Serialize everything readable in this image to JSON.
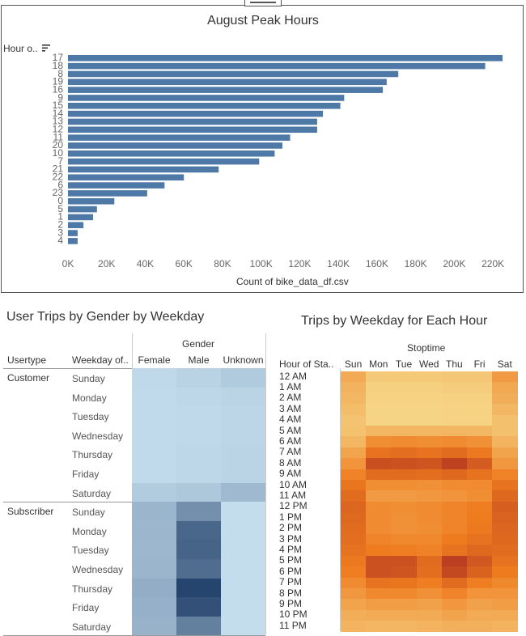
{
  "colors": {
    "bar": "#4e79a7",
    "axis_text": "#666666",
    "frame": "#555555"
  },
  "peak_hours": {
    "title": "August Peak Hours",
    "row_header": "Hour o..",
    "x_label": "Count of bike_data_df.csv",
    "sort_icon": "sort-descending-icon",
    "chart_data": {
      "type": "bar",
      "orientation": "horizontal",
      "title": "August Peak Hours",
      "xlabel": "Count of bike_data_df.csv",
      "ylabel": "Hour o..",
      "categories": [
        "17",
        "18",
        "8",
        "19",
        "16",
        "9",
        "15",
        "14",
        "13",
        "12",
        "11",
        "20",
        "10",
        "7",
        "21",
        "22",
        "6",
        "23",
        "0",
        "5",
        "1",
        "2",
        "3",
        "4"
      ],
      "values": [
        225000,
        216000,
        171000,
        165000,
        163000,
        143000,
        141000,
        132000,
        129000,
        129000,
        115000,
        111000,
        107000,
        99000,
        78000,
        60000,
        50000,
        41000,
        24000,
        15000,
        13000,
        8000,
        5000,
        5000
      ],
      "xlim": [
        0,
        230000
      ],
      "xticks": [
        0,
        20000,
        40000,
        60000,
        80000,
        100000,
        120000,
        140000,
        160000,
        180000,
        200000,
        220000
      ],
      "xtick_labels": [
        "0K",
        "20K",
        "40K",
        "60K",
        "80K",
        "100K",
        "120K",
        "140K",
        "160K",
        "180K",
        "200K",
        "220K"
      ],
      "grid": false,
      "legend": "none"
    }
  },
  "gender_table": {
    "title": "User Trips by Gender by Weekday",
    "gender_header": "Gender",
    "usertype_header": "Usertype",
    "weekday_header": "Weekday of..",
    "columns": [
      "Female",
      "Male",
      "Unknown"
    ],
    "groups": [
      {
        "usertype": "Customer",
        "days": [
          "Sunday",
          "Monday",
          "Tuesday",
          "Wednesday",
          "Thursday",
          "Friday",
          "Saturday"
        ]
      },
      {
        "usertype": "Subscriber",
        "days": [
          "Sunday",
          "Monday",
          "Tuesday",
          "Wednesday",
          "Thursday",
          "Friday",
          "Saturday"
        ]
      }
    ],
    "chart_data": {
      "type": "heatmap",
      "title": "User Trips by Gender by Weekday",
      "xlabel": "Gender",
      "ylabel": "Usertype / Weekday of..",
      "x": [
        "Female",
        "Male",
        "Unknown"
      ],
      "y": [
        "Customer Sunday",
        "Customer Monday",
        "Customer Tuesday",
        "Customer Wednesday",
        "Customer Thursday",
        "Customer Friday",
        "Customer Saturday",
        "Subscriber Sunday",
        "Subscriber Monday",
        "Subscriber Tuesday",
        "Subscriber Wednesday",
        "Subscriber Thursday",
        "Subscriber Friday",
        "Subscriber Saturday"
      ],
      "values": [
        [
          0.05,
          0.09,
          0.14
        ],
        [
          0.04,
          0.06,
          0.08
        ],
        [
          0.04,
          0.05,
          0.07
        ],
        [
          0.04,
          0.05,
          0.07
        ],
        [
          0.04,
          0.06,
          0.08
        ],
        [
          0.04,
          0.06,
          0.08
        ],
        [
          0.13,
          0.16,
          0.25
        ],
        [
          0.28,
          0.52,
          0.02
        ],
        [
          0.27,
          0.78,
          0.02
        ],
        [
          0.26,
          0.8,
          0.02
        ],
        [
          0.28,
          0.74,
          0.02
        ],
        [
          0.33,
          1.0,
          0.02
        ],
        [
          0.31,
          0.92,
          0.02
        ],
        [
          0.3,
          0.62,
          0.02
        ]
      ],
      "color_scale": {
        "low": "#c7e0f0",
        "high": "#26456e"
      },
      "legend": "none"
    }
  },
  "weekday_heatmap": {
    "title": "Trips by Weekday for Each Hour",
    "stoptime_header": "Stoptime",
    "hour_header": "Hour of Sta..",
    "days": [
      "Sun",
      "Mon",
      "Tue",
      "Wed",
      "Thu",
      "Fri",
      "Sat"
    ],
    "hours": [
      "12 AM",
      "1 AM",
      "2 AM",
      "3 AM",
      "4 AM",
      "5 AM",
      "6 AM",
      "7 AM",
      "8 AM",
      "9 AM",
      "10 AM",
      "11 AM",
      "12 PM",
      "1 PM",
      "2 PM",
      "3 PM",
      "4 PM",
      "5 PM",
      "6 PM",
      "7 PM",
      "8 PM",
      "9 PM",
      "10 PM",
      "11 PM"
    ],
    "chart_data": {
      "type": "heatmap",
      "title": "Trips by Weekday for Each Hour",
      "xlabel": "Stoptime",
      "ylabel": "Hour of Sta..",
      "x": [
        "Sun",
        "Mon",
        "Tue",
        "Wed",
        "Thu",
        "Fri",
        "Sat"
      ],
      "y": [
        "12 AM",
        "1 AM",
        "2 AM",
        "3 AM",
        "4 AM",
        "5 AM",
        "6 AM",
        "7 AM",
        "8 AM",
        "9 AM",
        "10 AM",
        "11 AM",
        "12 PM",
        "1 PM",
        "2 PM",
        "3 PM",
        "4 PM",
        "5 PM",
        "6 PM",
        "7 PM",
        "8 PM",
        "9 PM",
        "10 PM",
        "11 PM"
      ],
      "values": [
        [
          0.3,
          0.1,
          0.1,
          0.1,
          0.12,
          0.12,
          0.4
        ],
        [
          0.25,
          0.06,
          0.06,
          0.06,
          0.08,
          0.08,
          0.32
        ],
        [
          0.22,
          0.04,
          0.04,
          0.04,
          0.05,
          0.05,
          0.28
        ],
        [
          0.18,
          0.03,
          0.03,
          0.03,
          0.04,
          0.04,
          0.22
        ],
        [
          0.14,
          0.03,
          0.03,
          0.03,
          0.04,
          0.04,
          0.16
        ],
        [
          0.15,
          0.22,
          0.22,
          0.22,
          0.22,
          0.22,
          0.16
        ],
        [
          0.22,
          0.48,
          0.5,
          0.48,
          0.5,
          0.46,
          0.24
        ],
        [
          0.34,
          0.66,
          0.68,
          0.66,
          0.7,
          0.62,
          0.34
        ],
        [
          0.44,
          0.88,
          0.86,
          0.84,
          0.96,
          0.8,
          0.42
        ],
        [
          0.55,
          0.7,
          0.7,
          0.68,
          0.72,
          0.66,
          0.55
        ],
        [
          0.64,
          0.48,
          0.48,
          0.46,
          0.5,
          0.5,
          0.66
        ],
        [
          0.7,
          0.4,
          0.4,
          0.42,
          0.44,
          0.48,
          0.72
        ],
        [
          0.74,
          0.5,
          0.48,
          0.5,
          0.54,
          0.58,
          0.78
        ],
        [
          0.72,
          0.5,
          0.46,
          0.5,
          0.54,
          0.6,
          0.76
        ],
        [
          0.7,
          0.5,
          0.46,
          0.48,
          0.54,
          0.62,
          0.74
        ],
        [
          0.68,
          0.54,
          0.52,
          0.52,
          0.6,
          0.66,
          0.72
        ],
        [
          0.66,
          0.6,
          0.58,
          0.56,
          0.66,
          0.72,
          0.7
        ],
        [
          0.62,
          0.86,
          0.86,
          0.7,
          0.98,
          0.82,
          0.66
        ],
        [
          0.58,
          0.86,
          0.84,
          0.68,
          0.92,
          0.76,
          0.6
        ],
        [
          0.5,
          0.66,
          0.64,
          0.58,
          0.7,
          0.58,
          0.52
        ],
        [
          0.42,
          0.52,
          0.52,
          0.46,
          0.54,
          0.44,
          0.44
        ],
        [
          0.34,
          0.38,
          0.38,
          0.36,
          0.42,
          0.36,
          0.38
        ],
        [
          0.28,
          0.3,
          0.3,
          0.3,
          0.34,
          0.3,
          0.3
        ],
        [
          0.24,
          0.22,
          0.22,
          0.24,
          0.26,
          0.26,
          0.24
        ]
      ],
      "color_scale": {
        "low": "#f5d98a",
        "mid": "#ef7b1f",
        "high": "#b83c20"
      },
      "legend": "none"
    }
  }
}
